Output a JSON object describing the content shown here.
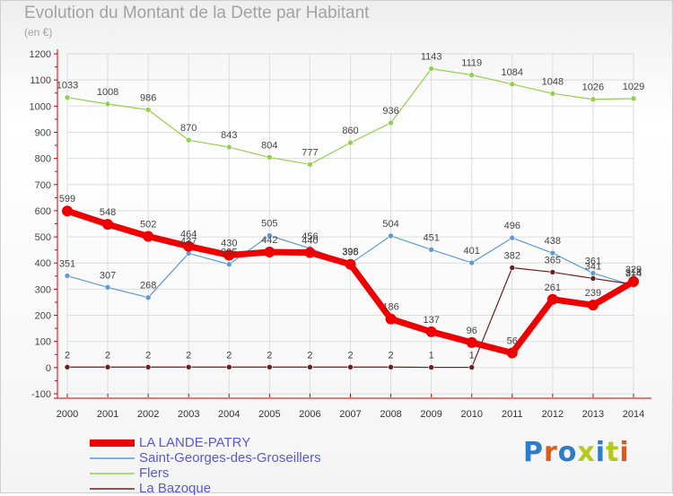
{
  "title": "Evolution du Montant de la Dette par Habitant",
  "unit_label": "(en €)",
  "logo_text": "Proxiti",
  "chart_data": {
    "type": "line",
    "x": [
      "2000",
      "2001",
      "2002",
      "2003",
      "2004",
      "2005",
      "2006",
      "2007",
      "2008",
      "2009",
      "2010",
      "2011",
      "2012",
      "2013",
      "2014"
    ],
    "ylim": [
      -100,
      1200
    ],
    "yticks": [
      "-100",
      "0",
      "100",
      "200",
      "300",
      "400",
      "500",
      "600",
      "700",
      "800",
      "900",
      "1000",
      "1100",
      "1200"
    ],
    "grid": true,
    "legend_position": "bottom-left",
    "series": [
      {
        "name": "LA LANDE-PATRY",
        "color": "#ee0000",
        "values": [
          599,
          548,
          502,
          464,
          430,
          442,
          440,
          395,
          186,
          137,
          96,
          56,
          261,
          239,
          329
        ]
      },
      {
        "name": "Saint-Georges-des-Groseillers",
        "color": "#5b9bd5",
        "values": [
          351,
          307,
          268,
          437,
          395,
          505,
          456,
          398,
          504,
          451,
          401,
          496,
          438,
          361,
          314
        ]
      },
      {
        "name": "Flers",
        "color": "#92d050",
        "values": [
          1033,
          1008,
          986,
          870,
          843,
          804,
          777,
          860,
          936,
          1143,
          1119,
          1084,
          1048,
          1026,
          1029
        ]
      },
      {
        "name": "La Bazoque",
        "color": "#6b1f1f",
        "values": [
          2,
          2,
          2,
          2,
          2,
          2,
          2,
          2,
          2,
          1,
          1,
          382,
          365,
          341,
          318
        ]
      }
    ]
  }
}
